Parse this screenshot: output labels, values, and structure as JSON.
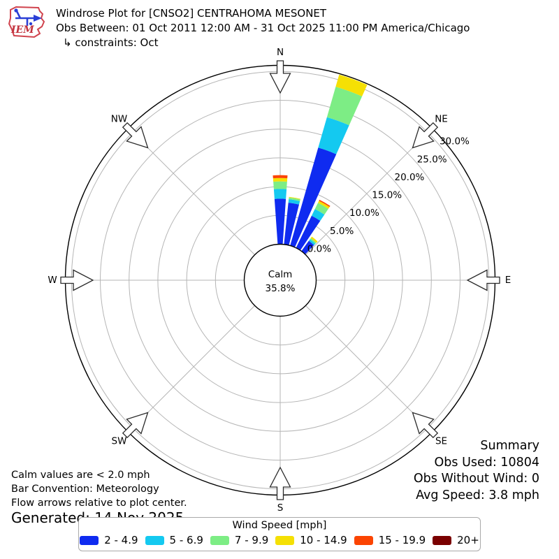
{
  "header": {
    "title": "Windrose Plot for [CNSO2] CENTRAHOMA MESONET",
    "subtitle": "Obs Between: 01 Oct 2011 12:00 AM - 31 Oct 2025 11:00 PM America/Chicago",
    "constraints": "↳ constraints: Oct",
    "logo_text": "IEM"
  },
  "summary": {
    "title": "Summary",
    "obs_used": "Obs Used: 10804",
    "obs_without_wind": "Obs Without Wind: 0",
    "avg_speed": "Avg Speed: 3.8 mph"
  },
  "footnotes": {
    "calm_note": "Calm values are < 2.0 mph",
    "convention_note": "Bar Convention: Meteorology",
    "arrows_note": "Flow arrows relative to plot center.",
    "generated": "Generated: 14 Nov 2025"
  },
  "legend": {
    "title": "Wind Speed [mph]",
    "items": [
      {
        "label": "2 - 4.9",
        "color": "#0f2bf0"
      },
      {
        "label": "5 - 6.9",
        "color": "#14c9f0"
      },
      {
        "label": "7 - 9.9",
        "color": "#7ded85"
      },
      {
        "label": "10 - 14.9",
        "color": "#f5e004"
      },
      {
        "label": "15 - 19.9",
        "color": "#fb4402"
      },
      {
        "label": "20+",
        "color": "#7a0000"
      }
    ]
  },
  "chart_data": {
    "type": "windrose",
    "title": "Wind Speed [mph]",
    "units": "percent of observations",
    "calm": {
      "label": "Calm",
      "pct": 35.8,
      "pct_label": "35.8%"
    },
    "ring_values": [
      0,
      5,
      10,
      15,
      20,
      25,
      30
    ],
    "ring_labels": [
      "0.0%",
      "5.0%",
      "10.0%",
      "15.0%",
      "20.0%",
      "25.0%",
      "30.0%"
    ],
    "rmax_pct": 31,
    "label_angle_deg": 51.5,
    "grid_color": "#b5b5b5",
    "speed_bins": [
      "2 - 4.9",
      "5 - 6.9",
      "7 - 9.9",
      "10 - 14.9",
      "15 - 19.9",
      "20+"
    ],
    "colors": [
      "#0f2bf0",
      "#14c9f0",
      "#7ded85",
      "#f5e004",
      "#fb4402",
      "#7a0000"
    ],
    "compass": [
      {
        "label": "N",
        "angle": 0
      },
      {
        "label": "NE",
        "angle": 45
      },
      {
        "label": "E",
        "angle": 90
      },
      {
        "label": "SE",
        "angle": 135
      },
      {
        "label": "S",
        "angle": 180
      },
      {
        "label": "SW",
        "angle": 225
      },
      {
        "label": "W",
        "angle": 270
      },
      {
        "label": "NW",
        "angle": 315
      }
    ],
    "petals": [
      {
        "angle": 0,
        "values": [
          7.9,
          1.7,
          1.3,
          0.6,
          0.5,
          0
        ]
      },
      {
        "angle": 10,
        "values": [
          7.3,
          0.6,
          0.3,
          0.1,
          0,
          0
        ]
      },
      {
        "angle": 20,
        "values": [
          17.7,
          5.5,
          5.5,
          2.2,
          0,
          0
        ]
      },
      {
        "angle": 30,
        "values": [
          6.2,
          1.3,
          1.2,
          0.4,
          0.2,
          0
        ]
      },
      {
        "angle": 40,
        "values": [
          2.2,
          0.35,
          0.25,
          0.3,
          0,
          0
        ]
      }
    ]
  }
}
